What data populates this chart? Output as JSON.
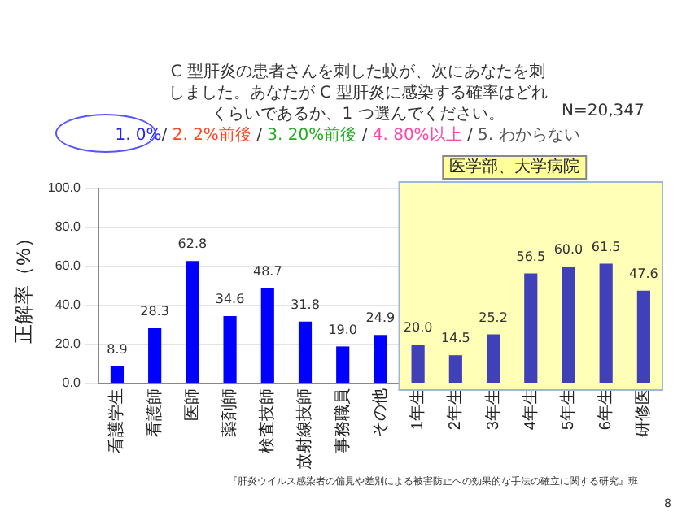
{
  "chart_data": {
    "type": "bar",
    "title": "C 型肝炎の患者さんを刺した蚊が、次にあなたを刺しました。あなたが C 型肝炎に感染する確率はどれくらいであるか、1 つ選んでください。",
    "subtitle": "1. 0%/ 2. 2%前後 / 3. 20%前後 / 4. 80%以上 / 5. わからない",
    "ylabel": "正解率（%）",
    "categories": [
      "看護学生",
      "看護師",
      "医師",
      "薬剤師",
      "検査技師",
      "放射線技師",
      "事務職員",
      "その他",
      "1年生",
      "2年生",
      "3年生",
      "4年生",
      "5年生",
      "6年生",
      "研修医"
    ],
    "values": [
      8.9,
      28.3,
      62.8,
      34.6,
      48.7,
      31.8,
      19.0,
      24.9,
      20.0,
      14.5,
      25.2,
      56.5,
      60.0,
      61.5,
      47.6
    ],
    "value_labels": [
      "8.9",
      "28.3",
      "62.8",
      "34.6",
      "48.7",
      "31.8",
      "19.0",
      "24.9",
      "20.0",
      "14.5",
      "25.2",
      "56.5",
      "60.0",
      "61.5",
      "47.6"
    ],
    "colors": [
      "#0000ff",
      "#0000ff",
      "#0000ff",
      "#0000ff",
      "#0000ff",
      "#0000ff",
      "#0000ff",
      "#0000ff",
      "#4040b8",
      "#4040b8",
      "#4040b8",
      "#4040b8",
      "#4040b8",
      "#4040b8",
      "#4040b8"
    ],
    "ylim": [
      0,
      100
    ],
    "yticks": [
      {
        "value": 0,
        "label": "0.0"
      },
      {
        "value": 20,
        "label": "20.0"
      },
      {
        "value": 40,
        "label": "40.0"
      },
      {
        "value": 60,
        "label": "60.0"
      },
      {
        "value": 80,
        "label": "80.0"
      },
      {
        "value": 100,
        "label": "100.0"
      }
    ],
    "grid": "y",
    "bands": [
      {
        "axis": "x",
        "from": "1年生",
        "to": "研修医",
        "label": "医学部、大学病院",
        "color": "#ffffb8"
      }
    ],
    "annotations": [
      "N=20,347",
      "『肝炎ウイルス感染者の偏見や差別による被害防止への効果的な手法の確立に関する研究』班",
      "8"
    ]
  }
}
